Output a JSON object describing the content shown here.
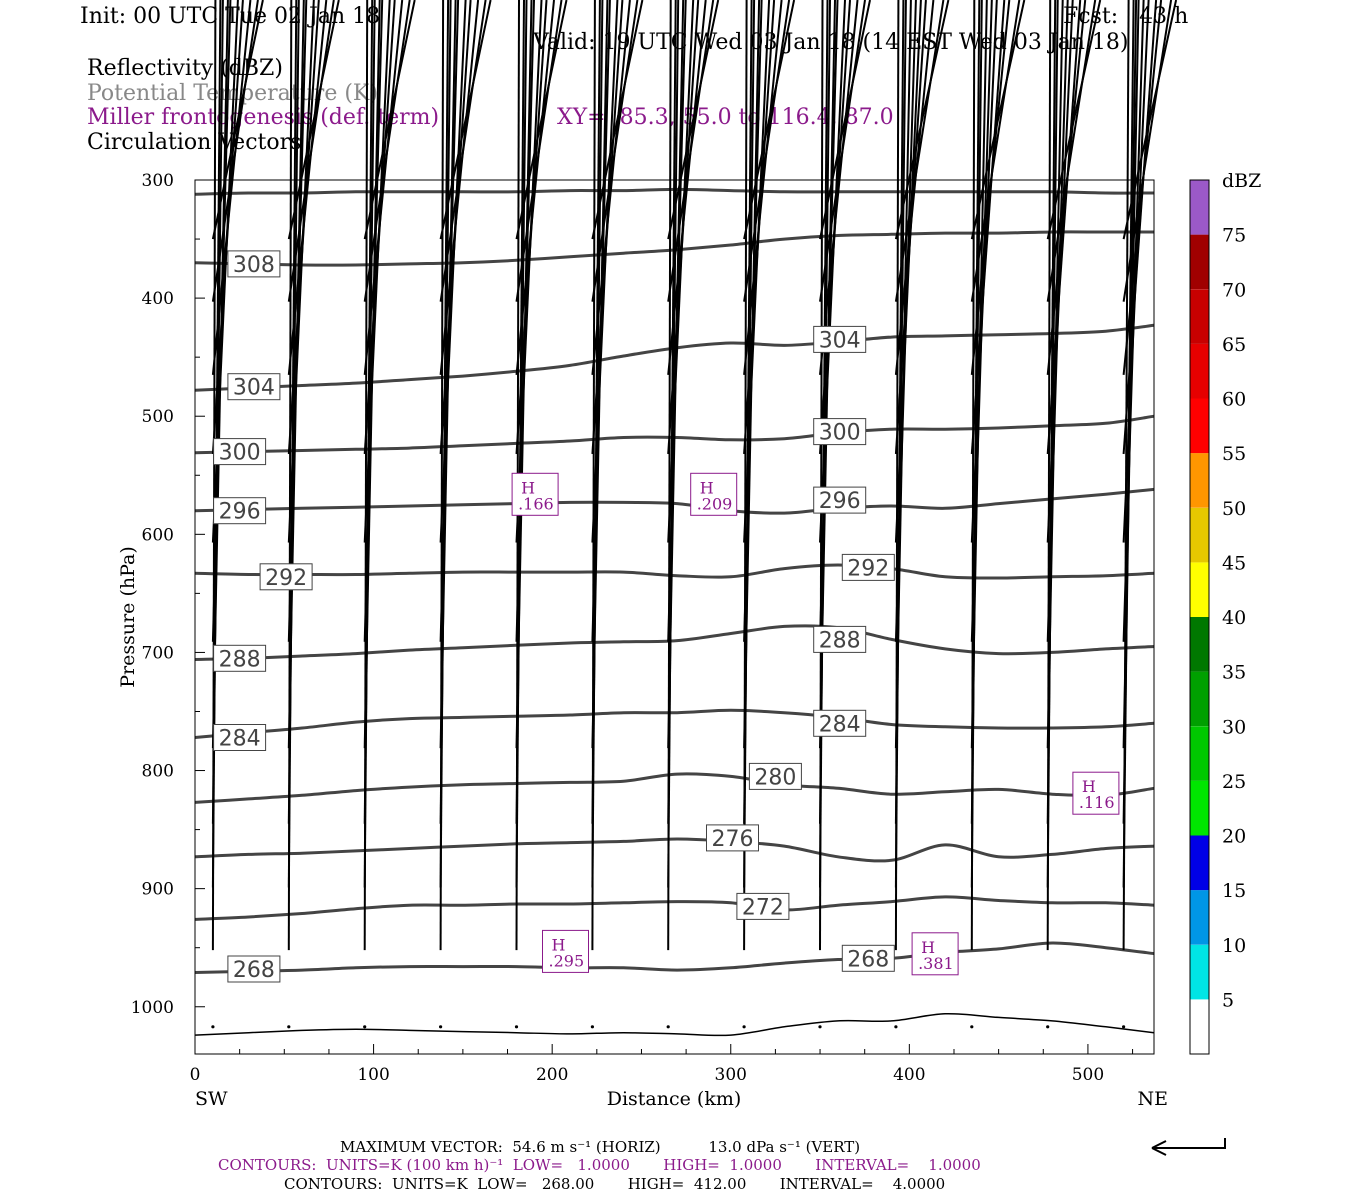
{
  "header": {
    "init": "Init: 00 UTC Tue 02 Jan 18",
    "fcst": "Fcst:   43 h",
    "valid": "Valid: 19 UTC Wed 03 Jan 18 (14 EST Wed 03 Jan 18)",
    "field1": "Reflectivity (dBZ)",
    "field2": "Potential Temperature (K)",
    "field3": "Miller frontogenesis (def. term)",
    "xy": "XY=  85.3, 55.0 to 116.4, 87.0",
    "field4": "Circulation Vectors"
  },
  "colors": {
    "theta": "#444444",
    "fronto": "#8b1a8b",
    "vector": "#000000",
    "colorbar": [
      "#ffffff",
      "#00e5e5",
      "#0096e6",
      "#0000e6",
      "#00e600",
      "#00c800",
      "#00a000",
      "#007800",
      "#ffff00",
      "#e6c800",
      "#ff9600",
      "#ff0000",
      "#e60000",
      "#c80000",
      "#a00000",
      "#ff00ff",
      "#9b59c8",
      "#ffffff"
    ]
  },
  "chart_data": {
    "type": "cross-section",
    "xlabel": "Distance (km)",
    "ylabel": "Pressure (hPa)",
    "xlim": [
      0,
      537
    ],
    "ylim": [
      1040,
      300
    ],
    "x_ticks": [
      "0",
      "100",
      "200",
      "300",
      "400",
      "500"
    ],
    "y_ticks": [
      "300",
      "400",
      "500",
      "600",
      "700",
      "800",
      "900",
      "1000"
    ],
    "x_end_labels": [
      "SW",
      "NE"
    ],
    "colorbar": {
      "unit": "dBZ",
      "levels": [
        "5",
        "10",
        "15",
        "20",
        "25",
        "30",
        "35",
        "40",
        "45",
        "50",
        "55",
        "60",
        "65",
        "70",
        "75"
      ]
    },
    "theta_contour_x": [
      0,
      30,
      60,
      90,
      120,
      150,
      180,
      210,
      240,
      270,
      300,
      330,
      360,
      390,
      420,
      450,
      480,
      510,
      537
    ],
    "theta_contours": [
      {
        "p": [
          312,
          311,
          311,
          310,
          310,
          310,
          310,
          309,
          309,
          308,
          309,
          310,
          310,
          310,
          310,
          310,
          310,
          311,
          311
        ]
      },
      {
        "p": [
          370,
          371,
          372,
          372,
          371,
          370,
          368,
          365,
          362,
          359,
          355,
          350,
          347,
          346,
          345,
          345,
          344,
          344,
          344
        ]
      },
      {
        "p": [
          478,
          476,
          474,
          472,
          469,
          466,
          462,
          457,
          449,
          442,
          438,
          440,
          437,
          433,
          432,
          431,
          430,
          428,
          423
        ]
      },
      {
        "p": [
          531,
          530,
          529,
          528,
          527,
          525,
          523,
          521,
          518,
          518,
          520,
          519,
          514,
          511,
          511,
          510,
          508,
          506,
          500
        ]
      },
      {
        "p": [
          580,
          579,
          578,
          577,
          576,
          575,
          574,
          573,
          573,
          574,
          580,
          582,
          578,
          576,
          578,
          574,
          570,
          566,
          562
        ]
      },
      {
        "p": [
          633,
          634,
          634,
          634,
          633,
          632,
          632,
          632,
          632,
          635,
          636,
          629,
          626,
          629,
          636,
          637,
          636,
          635,
          633
        ]
      },
      {
        "p": [
          706,
          705,
          703,
          701,
          698,
          696,
          694,
          692,
          691,
          690,
          684,
          678,
          679,
          689,
          697,
          701,
          700,
          697,
          695
        ]
      },
      {
        "p": [
          772,
          768,
          764,
          759,
          756,
          755,
          754,
          753,
          751,
          751,
          749,
          751,
          755,
          761,
          763,
          764,
          764,
          763,
          760
        ]
      },
      {
        "p": [
          827,
          824,
          821,
          817,
          814,
          812,
          811,
          810,
          809,
          803,
          805,
          812,
          815,
          820,
          818,
          816,
          820,
          821,
          815
        ]
      },
      {
        "p": [
          873,
          871,
          870,
          868,
          866,
          864,
          862,
          861,
          860,
          858,
          860,
          864,
          873,
          876,
          863,
          873,
          871,
          866,
          864
        ]
      },
      {
        "p": [
          926,
          924,
          921,
          917,
          914,
          914,
          913,
          913,
          912,
          911,
          912,
          918,
          914,
          911,
          907,
          910,
          912,
          912,
          914
        ]
      },
      {
        "p": [
          971,
          970,
          969,
          967,
          966,
          966,
          966,
          967,
          967,
          969,
          967,
          963,
          960,
          959,
          954,
          951,
          946,
          950,
          955
        ]
      }
    ],
    "terrain_p": [
      1024,
      1022,
      1020,
      1019,
      1020,
      1021,
      1022,
      1023,
      1022,
      1023,
      1024,
      1017,
      1012,
      1012,
      1006,
      1009,
      1012,
      1017,
      1022
    ],
    "theta_labels": [
      {
        "text": "308",
        "x": 33,
        "p": 371
      },
      {
        "text": "304",
        "x": 33,
        "p": 475
      },
      {
        "text": "304",
        "x": 361,
        "p": 435
      },
      {
        "text": "300",
        "x": 25,
        "p": 530
      },
      {
        "text": "300",
        "x": 361,
        "p": 513
      },
      {
        "text": "296",
        "x": 25,
        "p": 580
      },
      {
        "text": "296",
        "x": 361,
        "p": 571
      },
      {
        "text": "292",
        "x": 51,
        "p": 636
      },
      {
        "text": "292",
        "x": 377,
        "p": 628
      },
      {
        "text": "288",
        "x": 25,
        "p": 705
      },
      {
        "text": "288",
        "x": 361,
        "p": 689
      },
      {
        "text": "284",
        "x": 25,
        "p": 772
      },
      {
        "text": "284",
        "x": 361,
        "p": 760
      },
      {
        "text": "280",
        "x": 325,
        "p": 805
      },
      {
        "text": "276",
        "x": 301,
        "p": 857
      },
      {
        "text": "272",
        "x": 318,
        "p": 915
      },
      {
        "text": "268",
        "x": 33,
        "p": 968
      },
      {
        "text": "268",
        "x": 377,
        "p": 959
      }
    ],
    "fronto_maxima": [
      {
        "text": "H",
        "value": ".166",
        "x": 191,
        "p": 567
      },
      {
        "text": "H",
        "value": ".209",
        "x": 291,
        "p": 567
      },
      {
        "text": "H",
        "value": ".116",
        "x": 505,
        "p": 820
      },
      {
        "text": "H",
        "value": ".295",
        "x": 208,
        "p": 954
      },
      {
        "text": "H",
        "value": ".381",
        "x": 415,
        "p": 956
      }
    ],
    "vector_rows": [
      {
        "p": 350,
        "u": [
          40,
          40,
          40,
          40,
          40,
          40,
          40,
          40,
          40,
          42,
          42,
          42,
          42,
          42,
          42,
          42
        ],
        "w": [
          0,
          0,
          0,
          0,
          0,
          0,
          0,
          -1,
          0,
          -1,
          0,
          1,
          1,
          1,
          1,
          0
        ]
      },
      {
        "p": 403,
        "u": [
          36,
          36,
          36,
          36,
          36,
          36,
          36,
          36,
          36,
          38,
          38,
          38,
          38,
          38,
          38,
          38
        ],
        "w": [
          -1,
          0,
          0,
          0,
          0,
          0,
          0,
          0,
          -1,
          -3,
          0,
          1,
          2,
          2,
          2,
          0
        ]
      },
      {
        "p": 465,
        "u": [
          30,
          30,
          30,
          30,
          30,
          30,
          30,
          30,
          30,
          30,
          30,
          30,
          30,
          32,
          32,
          32
        ],
        "w": [
          -1,
          -1,
          -1,
          0,
          0,
          -1,
          0,
          0,
          0,
          -3,
          1,
          1,
          2,
          3,
          3,
          1
        ]
      },
      {
        "p": 532,
        "u": [
          24,
          24,
          24,
          24,
          24,
          24,
          24,
          24,
          24,
          24,
          26,
          26,
          26,
          26,
          26,
          26
        ],
        "w": [
          -1,
          -1,
          0,
          0,
          0,
          0,
          0,
          0,
          0,
          -2,
          3,
          4,
          4,
          4,
          4,
          3
        ]
      },
      {
        "p": 607,
        "u": [
          20,
          20,
          20,
          20,
          20,
          20,
          20,
          20,
          20,
          20,
          20,
          20,
          20,
          20,
          20,
          20
        ],
        "w": [
          0,
          0,
          0,
          0,
          0,
          0,
          -1,
          0,
          0,
          -1,
          3,
          6,
          4,
          3,
          6,
          3
        ]
      },
      {
        "p": 691,
        "u": [
          14,
          14,
          14,
          14,
          14,
          14,
          14,
          14,
          14,
          16,
          16,
          16,
          16,
          16,
          16,
          16
        ],
        "w": [
          0,
          1,
          1,
          0,
          0,
          -1,
          0,
          0,
          0,
          3,
          4,
          6,
          6,
          7,
          7,
          5
        ]
      },
      {
        "p": 781,
        "u": [
          12,
          12,
          12,
          12,
          12,
          12,
          12,
          12,
          12,
          12,
          12,
          12,
          12,
          12,
          12,
          12
        ],
        "w": [
          -1,
          0,
          0,
          0,
          0,
          0,
          1,
          1,
          1,
          3,
          3,
          6,
          7,
          7,
          9,
          5
        ]
      },
      {
        "p": 845,
        "u": [
          8,
          8,
          8,
          8,
          8,
          8,
          8,
          8,
          8,
          8,
          8,
          8,
          10,
          10,
          10,
          8
        ],
        "w": [
          -1,
          0,
          0,
          0,
          0,
          0,
          0,
          0,
          0,
          2,
          3,
          7,
          8,
          8,
          8,
          5
        ]
      },
      {
        "p": 899,
        "u": [
          6,
          6,
          6,
          6,
          6,
          6,
          6,
          6,
          6,
          6,
          6,
          6,
          8,
          8,
          8,
          6
        ],
        "w": [
          0,
          0,
          0,
          0,
          0,
          0,
          0,
          0,
          0,
          1,
          2,
          5,
          7,
          7,
          7,
          3
        ]
      },
      {
        "p": 952,
        "u": [
          2,
          2,
          2,
          2,
          2,
          2,
          2,
          2,
          2,
          2,
          2,
          2,
          4,
          4,
          4,
          2
        ],
        "w": [
          0,
          0,
          0,
          0,
          0,
          0,
          -1,
          0,
          0,
          0,
          2,
          4,
          5,
          4,
          4,
          1
        ]
      },
      {
        "p": 1017,
        "u": [
          0.5,
          0.5,
          0.5,
          0.5,
          0.5,
          0.5,
          0.5,
          0.5,
          0.5,
          0.5,
          0.5,
          0.5,
          0.5,
          0.5,
          0.5,
          0.5
        ],
        "w": [
          1,
          1,
          1,
          1,
          0,
          -1,
          0,
          0,
          -1,
          2,
          2,
          1,
          1,
          0,
          0,
          1
        ]
      }
    ],
    "vector_x": [
      10,
      42,
      84,
      126,
      168,
      210,
      252,
      294,
      336,
      378,
      420,
      462,
      504,
      508,
      512,
      520
    ]
  },
  "footer": {
    "max_vector": "MAXIMUM VECTOR:  54.6 m s⁻¹ (HORIZ)          13.0 dPa s⁻¹ (VERT)",
    "contours1": "CONTOURS:  UNITS=K (100 km h)⁻¹  LOW=   1.0000       HIGH=  1.0000       INTERVAL=    1.0000",
    "contours2": "CONTOURS:  UNITS=K  LOW=   268.00       HIGH=  412.00       INTERVAL=    4.0000"
  }
}
